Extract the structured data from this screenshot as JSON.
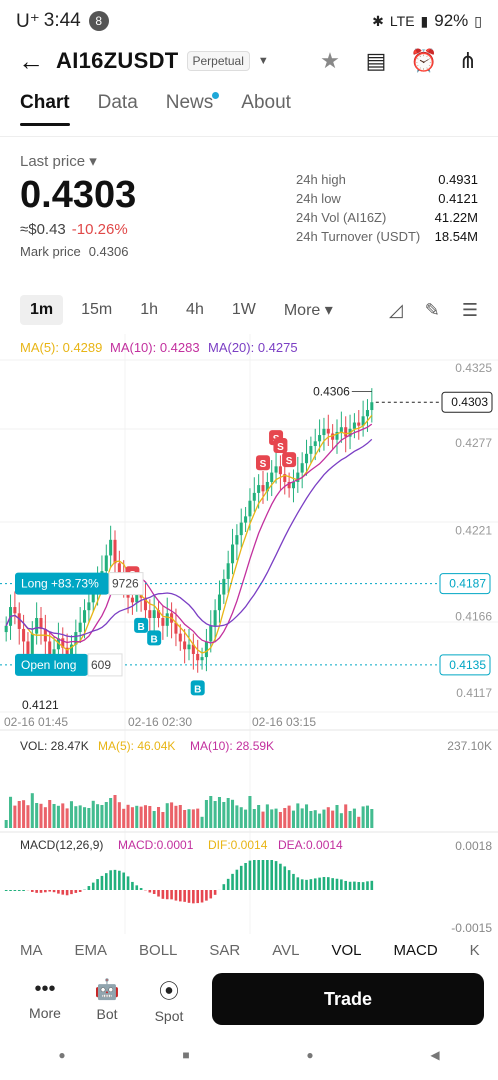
{
  "status": {
    "carrier": "U⁺",
    "time": "3:44",
    "notif_count": "8",
    "network": "LTE",
    "battery": "92%"
  },
  "header": {
    "symbol": "AI16ZUSDT",
    "badge": "Perpetual"
  },
  "tabs": [
    "Chart",
    "Data",
    "News",
    "About"
  ],
  "price": {
    "label": "Last price ▾",
    "value": "0.4303",
    "usd": "≈$0.43",
    "change": "-10.26%",
    "mark_label": "Mark price",
    "mark_value": "0.4306"
  },
  "stats": [
    {
      "label": "24h high",
      "value": "0.4931"
    },
    {
      "label": "24h low",
      "value": "0.4121"
    },
    {
      "label": "24h Vol (AI16Z)",
      "value": "41.22M"
    },
    {
      "label": "24h Turnover (USDT)",
      "value": "18.54M"
    }
  ],
  "intervals": [
    "1m",
    "15m",
    "1h",
    "4h",
    "1W",
    "More ▾"
  ],
  "ma_legend": {
    "ma5": "MA(5): 0.4289",
    "ma10": "MA(10): 0.4283",
    "ma20": "MA(20): 0.4275"
  },
  "vol_legend": {
    "vol": "VOL: 28.47K",
    "ma5": "MA(5): 46.04K",
    "ma10": "MA(10): 28.59K"
  },
  "macd_legend": {
    "name": "MACD(12,26,9)",
    "macd": "MACD:0.0001",
    "dif": "DIF:0.0014",
    "dea": "DEA:0.0014"
  },
  "chart_data": {
    "type": "candlestick",
    "price_axis_labels": [
      "0.4325",
      "0.4277",
      "0.4221",
      "0.4187",
      "0.4166",
      "0.4135",
      "0.4117"
    ],
    "y_range": [
      0.411,
      0.433
    ],
    "time_labels": [
      "02-16 01:45",
      "02-16 02:30",
      "02-16 03:15"
    ],
    "last_price_tag": "0.4303",
    "high_label": "0.4306",
    "low_label": "0.4121",
    "long_position": {
      "label": "Long +83.73%",
      "qty_text": "9726",
      "price": "0.4187"
    },
    "open_long": {
      "label": "Open long",
      "qty_text": "609",
      "price": "0.4135"
    },
    "volume_axis_max": "237.10K",
    "macd_axis_labels": [
      "0.0018",
      "-0.0015"
    ],
    "colors": {
      "up": "#22b07d",
      "down": "#e6464f",
      "ma5": "#e8b516",
      "ma10": "#c2309e",
      "ma20": "#7b3fc4",
      "accent": "#00a6c4"
    },
    "closes": [
      0.416,
      0.4172,
      0.4168,
      0.4158,
      0.415,
      0.4142,
      0.4155,
      0.4165,
      0.4158,
      0.415,
      0.414,
      0.4145,
      0.4152,
      0.4146,
      0.414,
      0.4148,
      0.4156,
      0.4162,
      0.417,
      0.4175,
      0.4182,
      0.419,
      0.4195,
      0.4205,
      0.4215,
      0.42,
      0.4192,
      0.4185,
      0.4178,
      0.4175,
      0.4182,
      0.4178,
      0.417,
      0.4165,
      0.417,
      0.4165,
      0.416,
      0.4168,
      0.4162,
      0.4155,
      0.415,
      0.4145,
      0.4148,
      0.4142,
      0.4138,
      0.414,
      0.415,
      0.416,
      0.417,
      0.418,
      0.419,
      0.42,
      0.4212,
      0.4218,
      0.4226,
      0.423,
      0.424,
      0.4245,
      0.425,
      0.4246,
      0.4252,
      0.4258,
      0.4262,
      0.4257,
      0.4252,
      0.4248,
      0.4252,
      0.4258,
      0.4264,
      0.427,
      0.4275,
      0.4278,
      0.4282,
      0.4286,
      0.4283,
      0.4279,
      0.4284,
      0.4287,
      0.4281,
      0.4286,
      0.429,
      0.4288,
      0.4294,
      0.4298,
      0.4303
    ],
    "signals": [
      {
        "type": "S",
        "index": 29
      },
      {
        "type": "B",
        "index": 31
      },
      {
        "type": "B",
        "index": 34
      },
      {
        "type": "B",
        "index": 44
      },
      {
        "type": "S",
        "index": 59
      },
      {
        "type": "S",
        "index": 62
      },
      {
        "type": "S",
        "index": 63
      },
      {
        "type": "S",
        "index": 65
      }
    ]
  },
  "indicator_tabs": [
    "MA",
    "EMA",
    "BOLL",
    "SAR",
    "AVL",
    "VOL",
    "MACD",
    "K"
  ],
  "bottom_nav": [
    {
      "label": "More",
      "icon": "more-icon"
    },
    {
      "label": "Bot",
      "icon": "bot-icon"
    },
    {
      "label": "Spot",
      "icon": "spot-icon"
    }
  ],
  "trade_label": "Trade"
}
